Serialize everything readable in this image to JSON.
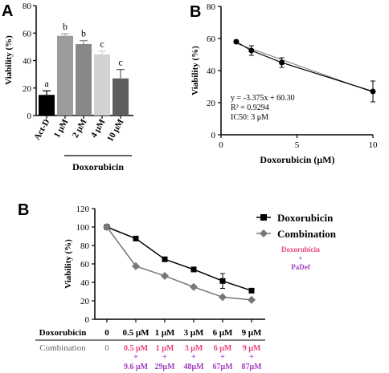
{
  "colors": {
    "bar_shades": [
      "#000000",
      "#9c9c9c",
      "#888888",
      "#d2d2d2",
      "#5e5e5e"
    ],
    "series_c1": "#000000",
    "series_c2": "#777777",
    "pink": "#e8457a",
    "purple": "#a23fc4"
  },
  "chart_data": [
    {
      "panel": "A",
      "type": "bar",
      "categories": [
        "Act-D",
        "1 μM",
        "2 μM",
        "4 μM",
        "10 μM"
      ],
      "values": [
        15,
        58,
        52,
        44.5,
        27
      ],
      "errors": [
        3,
        1.5,
        2.5,
        2.5,
        6.5
      ],
      "letters": [
        "a",
        "b",
        "b",
        "c",
        "c"
      ],
      "ylabel": "Viability (%)",
      "ylim": [
        0,
        80
      ],
      "yticks": [
        "0",
        "20",
        "40",
        "60",
        "80"
      ],
      "group_label": "Doxorubicin"
    },
    {
      "panel": "B",
      "type": "line",
      "x": [
        1,
        2,
        4,
        10
      ],
      "y": [
        58,
        52.5,
        45,
        27
      ],
      "errors": [
        1,
        3,
        3,
        6.5
      ],
      "fit_y": [
        56.925,
        53.55,
        46.8,
        26.55
      ],
      "xlabel": "Doxorubicin (μM)",
      "ylabel": "Viability (%)",
      "xlim": [
        0,
        10
      ],
      "ylim": [
        0,
        80
      ],
      "xticks": [
        "0",
        "5",
        "10"
      ],
      "yticks": [
        "0",
        "20",
        "40",
        "60",
        "80"
      ],
      "annotations": [
        "y = -3.375x + 60.30",
        "R² = 0.9294",
        "IC50: 3 μM"
      ]
    },
    {
      "panel": "B",
      "type": "line",
      "categories": [
        "0",
        "0.5 μM",
        "1 μM",
        "3 μM",
        "6 μM",
        "9 μM"
      ],
      "series": [
        {
          "name": "Doxorubicin",
          "values": [
            100,
            87.5,
            65,
            54,
            41.5,
            31
          ],
          "errors": [
            0,
            0,
            0,
            2.5,
            8,
            0
          ]
        },
        {
          "name": "Combination",
          "values": [
            100,
            57.5,
            47,
            35,
            24,
            21
          ],
          "errors": [
            0,
            0,
            0,
            0,
            0,
            0
          ]
        }
      ],
      "ylabel": "Viability (%)",
      "ylim": [
        0,
        120
      ],
      "yticks": [
        "0",
        "20",
        "40",
        "60",
        "80",
        "100",
        "120"
      ],
      "legend_position": "top-right",
      "legend_note": {
        "top": "Doxorubicin",
        "plus": "+",
        "bottom": "PaDef"
      },
      "table": {
        "row1_label": "Doxorubicin",
        "row1": [
          "0",
          "0.5 μM",
          "1 μM",
          "3 μM",
          "6 μM",
          "9 μM"
        ],
        "row2_label": "Combination",
        "row2_zero": "0",
        "row2_top": [
          "0.5 μM",
          "1 μM",
          "3 μM",
          "6 μM",
          "9 μM"
        ],
        "row2_plus": "+",
        "row2_bottom": [
          "9.6 μM",
          "29μM",
          "48μM",
          "67μM",
          "87μM"
        ]
      }
    }
  ],
  "panel_letters": {
    "a": "A",
    "b_top": "B",
    "b_bottom": "B"
  }
}
